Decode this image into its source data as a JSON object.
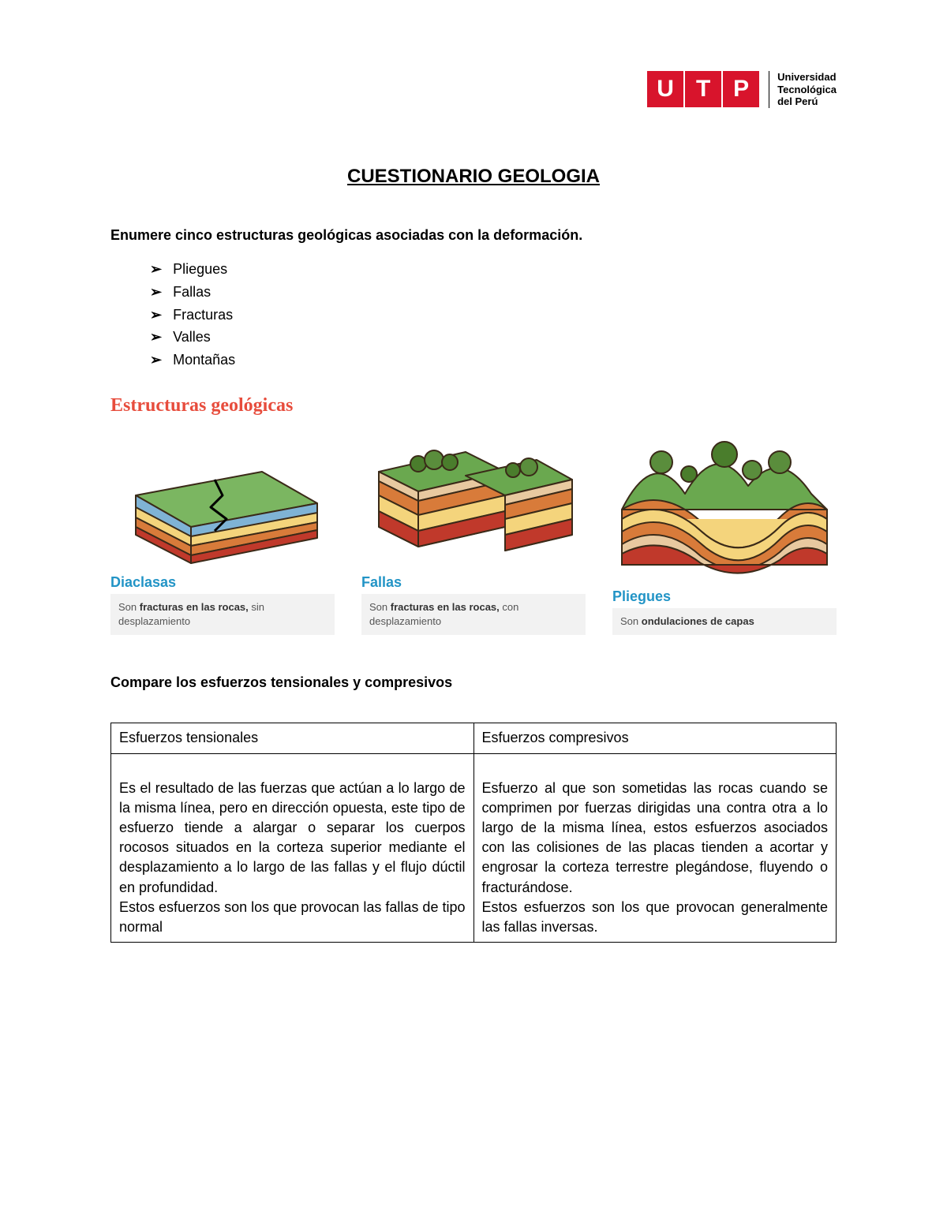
{
  "logo": {
    "letters": [
      "U",
      "T",
      "P"
    ],
    "bg_color": "#d8142c",
    "text_color": "#ffffff",
    "caption_line1": "Universidad",
    "caption_line2": "Tecnológica",
    "caption_line3": "del Perú"
  },
  "title": "CUESTIONARIO GEOLOGIA",
  "q1": {
    "prompt": "Enumere cinco estructuras geológicas asociadas con la deformación.",
    "items": [
      "Pliegues",
      "Fallas",
      "Fracturas",
      "Valles",
      "Montañas"
    ]
  },
  "infographic": {
    "title": "Estructuras geológicas",
    "title_color": "#e74c3c",
    "label_color": "#2294c6",
    "desc_bg": "#f2f2f2",
    "strata_colors": {
      "top": "#7bb661",
      "c1": "#7fb3d5",
      "c2": "#f4d47c",
      "c3": "#d87b3a",
      "c4": "#c0392b",
      "c5": "#e8c9a0",
      "outline": "#3a2a18"
    },
    "panels": [
      {
        "label": "Diaclasas",
        "desc_bold": "fracturas en las rocas,",
        "desc_pre": "Son ",
        "desc_mid": " sin",
        "desc_tail": "desplazamiento"
      },
      {
        "label": "Fallas",
        "desc_bold": "fracturas en las rocas,",
        "desc_pre": "Son ",
        "desc_mid": " con",
        "desc_tail": "desplazamiento"
      },
      {
        "label": "Pliegues",
        "desc_bold": "ondulaciones de capas",
        "desc_pre": "Son ",
        "desc_mid": "",
        "desc_tail": ""
      }
    ]
  },
  "q2": {
    "prompt": "Compare los esfuerzos tensionales y compresivos",
    "col1_header": "Esfuerzos tensionales",
    "col2_header": "Esfuerzos compresivos",
    "col1_body": "Es el resultado de las fuerzas que actúan a lo largo de la misma línea, pero en dirección opuesta, este tipo de esfuerzo tiende a alargar o separar los cuerpos rocosos situados en la corteza superior mediante el desplazamiento a lo largo de las fallas y el flujo dúctil en profundidad.\nEstos esfuerzos son los que provocan las fallas de tipo normal",
    "col2_body": "Esfuerzo al que son sometidas las rocas cuando se comprimen por fuerzas dirigidas una contra otra a lo largo de la misma línea, estos esfuerzos asociados con las colisiones de las placas tienden a acortar y engrosar la corteza terrestre plegándose, fluyendo o fracturándose.\nEstos esfuerzos son los que provocan generalmente las fallas inversas."
  }
}
